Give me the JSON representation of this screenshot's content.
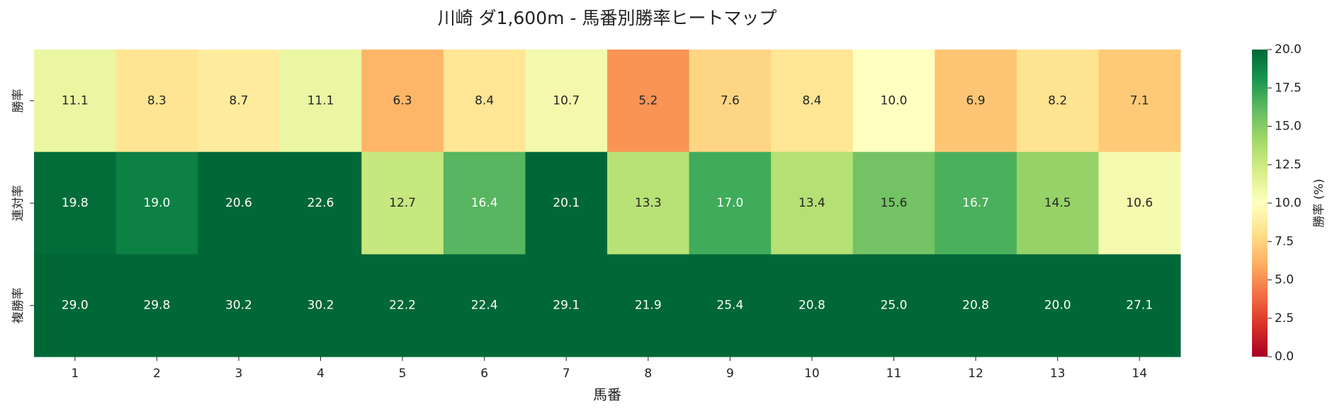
{
  "chart_data": {
    "type": "heatmap",
    "title": "川崎 ダ1,600m - 馬番別勝率ヒートマップ",
    "x_label": "馬番",
    "categories": [
      "1",
      "2",
      "3",
      "4",
      "5",
      "6",
      "7",
      "8",
      "9",
      "10",
      "11",
      "12",
      "13",
      "14"
    ],
    "series": [
      {
        "name": "勝率",
        "values": [
          11.1,
          8.3,
          8.7,
          11.1,
          6.3,
          8.4,
          10.7,
          5.2,
          7.6,
          8.4,
          10,
          6.9,
          8.2,
          7.1
        ],
        "value_labels": [
          "11.1",
          "8.3",
          "8.7",
          "11.1",
          "6.3",
          "8.4",
          "10.7",
          "5.2",
          "7.6",
          "8.4",
          "10.0",
          "6.9",
          "8.2",
          "7.1"
        ]
      },
      {
        "name": "連対率",
        "values": [
          19.8,
          19,
          20.6,
          22.6,
          12.7,
          16.4,
          20.1,
          13.3,
          17,
          13.4,
          15.6,
          16.7,
          14.5,
          10.6
        ],
        "value_labels": [
          "19.8",
          "19.0",
          "20.6",
          "22.6",
          "12.7",
          "16.4",
          "20.1",
          "13.3",
          "17.0",
          "13.4",
          "15.6",
          "16.7",
          "14.5",
          "10.6"
        ]
      },
      {
        "name": "複勝率",
        "values": [
          29,
          29.8,
          30.2,
          30.2,
          22.2,
          22.4,
          29.1,
          21.9,
          25.4,
          20.8,
          25,
          20.8,
          20,
          27.1
        ],
        "value_labels": [
          "29.0",
          "29.8",
          "30.2",
          "30.2",
          "22.2",
          "22.4",
          "29.1",
          "21.9",
          "25.4",
          "20.8",
          "25.0",
          "20.8",
          "20.0",
          "27.1"
        ]
      }
    ],
    "colormap": "RdYlGn",
    "colorbar_label": "勝率 (%)",
    "clim": [
      0,
      20
    ],
    "cticks": [
      {
        "value": 0,
        "label": "0.0"
      },
      {
        "value": 2.5,
        "label": "2.5"
      },
      {
        "value": 5,
        "label": "5.0"
      },
      {
        "value": 7.5,
        "label": "7.5"
      },
      {
        "value": 10,
        "label": "10.0"
      },
      {
        "value": 12.5,
        "label": "12.5"
      },
      {
        "value": 15,
        "label": "15.0"
      },
      {
        "value": 17.5,
        "label": "17.5"
      },
      {
        "value": 20,
        "label": "20.0"
      }
    ]
  }
}
